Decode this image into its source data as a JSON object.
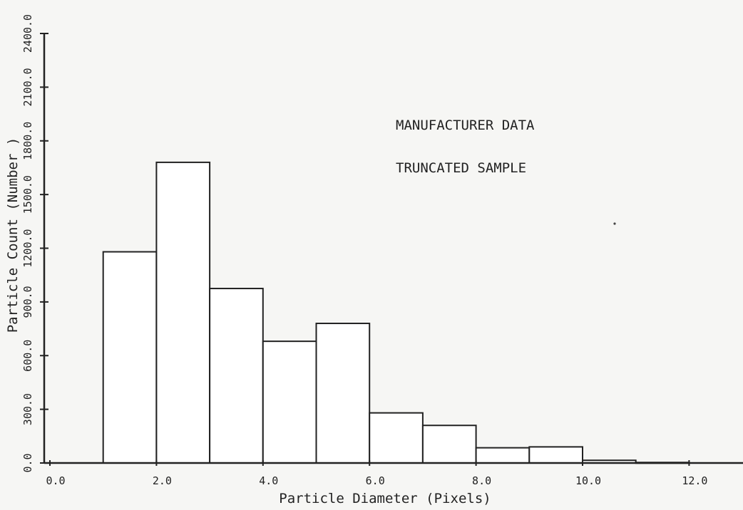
{
  "chart_data": {
    "type": "bar",
    "xlabel": "Particle Diameter (Pixels)",
    "ylabel": "Particle Count (Number )",
    "annotations": [
      "MANUFACTURER DATA",
      "TRUNCATED SAMPLE"
    ],
    "xlim": [
      0,
      13
    ],
    "ylim": [
      0,
      2400
    ],
    "x_ticks": [
      "0.0",
      "2.0",
      "4.0",
      "6.0",
      "8.0",
      "10.0",
      "12.0"
    ],
    "y_ticks": [
      "0.0",
      "300.0",
      "600.0",
      "900.0",
      "1200.0",
      "1500.0",
      "1800.0",
      "2100.0",
      "2400.0"
    ],
    "bins": [
      {
        "x0": 1,
        "x1": 2,
        "value": 1180
      },
      {
        "x0": 2,
        "x1": 3,
        "value": 1680
      },
      {
        "x0": 3,
        "x1": 4,
        "value": 975
      },
      {
        "x0": 4,
        "x1": 5,
        "value": 680
      },
      {
        "x0": 5,
        "x1": 6,
        "value": 780
      },
      {
        "x0": 6,
        "x1": 7,
        "value": 280
      },
      {
        "x0": 7,
        "x1": 8,
        "value": 210
      },
      {
        "x0": 8,
        "x1": 9,
        "value": 85
      },
      {
        "x0": 9,
        "x1": 10,
        "value": 90
      },
      {
        "x0": 10,
        "x1": 11,
        "value": 15
      },
      {
        "x0": 11,
        "x1": 12,
        "value": 3
      }
    ],
    "grid": false,
    "legend": "none"
  }
}
